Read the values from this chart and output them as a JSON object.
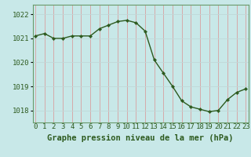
{
  "x": [
    0,
    1,
    2,
    3,
    4,
    5,
    6,
    7,
    8,
    9,
    10,
    11,
    12,
    13,
    14,
    15,
    16,
    17,
    18,
    19,
    20,
    21,
    22,
    23
  ],
  "y": [
    1021.1,
    1021.2,
    1021.0,
    1021.0,
    1021.1,
    1021.1,
    1021.1,
    1021.4,
    1021.55,
    1021.7,
    1021.75,
    1021.65,
    1021.3,
    1020.1,
    1019.55,
    1019.0,
    1018.4,
    1018.15,
    1018.05,
    1017.95,
    1018.0,
    1018.45,
    1018.75,
    1018.9
  ],
  "line_color": "#2d5a1e",
  "marker_color": "#2d5a1e",
  "bg_color": "#c8e8e8",
  "grid_color_v": "#d8a0a0",
  "grid_color_h": "#c0d8d8",
  "border_color": "#6a9a6a",
  "ylabel_ticks": [
    1018,
    1019,
    1020,
    1021,
    1022
  ],
  "xlabel_ticks": [
    0,
    1,
    2,
    3,
    4,
    5,
    6,
    7,
    8,
    9,
    10,
    11,
    12,
    13,
    14,
    15,
    16,
    17,
    18,
    19,
    20,
    21,
    22,
    23
  ],
  "ylim": [
    1017.5,
    1022.4
  ],
  "xlim": [
    -0.3,
    23.3
  ],
  "xlabel": "Graphe pression niveau de la mer (hPa)",
  "tick_fontsize": 6.5,
  "label_fontsize": 7.5
}
